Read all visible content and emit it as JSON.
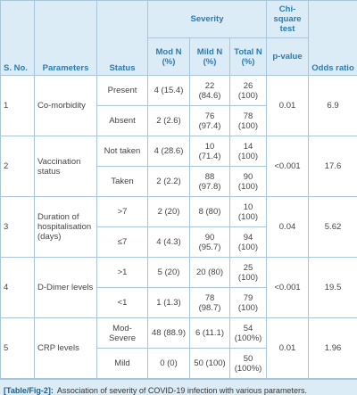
{
  "table": {
    "header": {
      "sno": "S. No.",
      "parameters": "Parameters",
      "status": "Status",
      "severity": "Severity",
      "mod": "Mod N (%)",
      "mild": "Mild N (%)",
      "total": "Total N (%)",
      "test": "Chi-square test",
      "pvalue": "p-value",
      "odds": "Odds ratio"
    },
    "groups": [
      {
        "sno": "1",
        "parameter": "Co-morbidity",
        "p_value": "0.01",
        "odds_ratio": "6.9",
        "rows": [
          {
            "status": "Present",
            "mod": "4 (15.4)",
            "mild": "22 (84.6)",
            "total": "26 (100)"
          },
          {
            "status": "Absent",
            "mod": "2 (2.6)",
            "mild": "76 (97.4)",
            "total": "78 (100)"
          }
        ]
      },
      {
        "sno": "2",
        "parameter": "Vaccination status",
        "p_value": "<0.001",
        "odds_ratio": "17.6",
        "rows": [
          {
            "status": "Not taken",
            "mod": "4 (28.6)",
            "mild": "10 (71.4)",
            "total": "14 (100)"
          },
          {
            "status": "Taken",
            "mod": "2 (2.2)",
            "mild": "88 (97.8)",
            "total": "90 (100)"
          }
        ]
      },
      {
        "sno": "3",
        "parameter": "Duration of hospitalisation (days)",
        "p_value": "0.04",
        "odds_ratio": "5.62",
        "rows": [
          {
            "status": ">7",
            "mod": "2 (20)",
            "mild": "8 (80)",
            "total": "10 (100)"
          },
          {
            "status": "≤7",
            "mod": "4 (4.3)",
            "mild": "90 (95.7)",
            "total": "94 (100)"
          }
        ]
      },
      {
        "sno": "4",
        "parameter": "D-Dimer levels",
        "p_value": "<0.001",
        "odds_ratio": "19.5",
        "rows": [
          {
            "status": ">1",
            "mod": "5 (20)",
            "mild": "20 (80)",
            "total": "25 (100)"
          },
          {
            "status": "<1",
            "mod": "1 (1.3)",
            "mild": "78 (98.7)",
            "total": "79 (100)"
          }
        ]
      },
      {
        "sno": "5",
        "parameter": "CRP levels",
        "p_value": "0.01",
        "odds_ratio": "1.96",
        "rows": [
          {
            "status": "Mod-Severe",
            "mod": "48 (88.9)",
            "mild": "6 (11.1)",
            "total": "54 (100%)"
          },
          {
            "status": "Mild",
            "mod": "0 (0)",
            "mild": "50 (100)",
            "total": "50 (100%)"
          }
        ]
      }
    ]
  },
  "caption": {
    "label": "[Table/Fig-2]:",
    "text": "Association of severity of COVID-19 infection with various parameters."
  }
}
